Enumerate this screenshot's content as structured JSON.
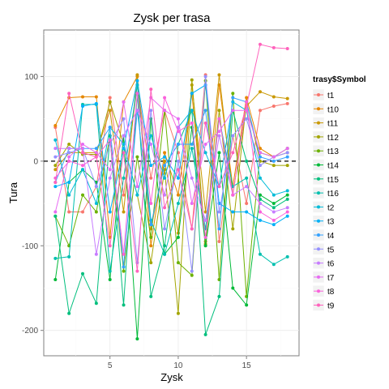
{
  "chart_data": {
    "type": "line",
    "title": "Zysk per trasa",
    "xlabel": "Zysk",
    "ylabel": "Tura",
    "xlim": [
      0.15,
      18.85
    ],
    "ylim": [
      -230,
      155
    ],
    "x_ticks": [
      5,
      10,
      15
    ],
    "y_ticks": [
      100,
      0,
      -100,
      -200
    ],
    "grid": true,
    "reference_line": {
      "y": 0,
      "style": "dashed"
    },
    "legend": {
      "title": "trasy$Symbol",
      "placement": "right"
    },
    "x": [
      1,
      2,
      3,
      4,
      5,
      6,
      7,
      8,
      9,
      10,
      11,
      12,
      13,
      14,
      15,
      16,
      17,
      18
    ],
    "series": [
      {
        "name": "t1",
        "color": "#F8766D",
        "values": [
          40,
          -60,
          -60,
          -30,
          75,
          -40,
          90,
          -20,
          60,
          10,
          -80,
          102,
          -95,
          30,
          -50,
          60,
          65,
          68
        ]
      },
      {
        "name": "t10",
        "color": "#E58700",
        "values": [
          42,
          75,
          76,
          76,
          -90,
          70,
          100,
          -100,
          10,
          -40,
          80,
          -95,
          90,
          -30,
          75,
          15,
          5,
          10
        ]
      },
      {
        "name": "t11",
        "color": "#C99800",
        "values": [
          -10,
          10,
          10,
          10,
          60,
          -60,
          102,
          -80,
          0,
          -85,
          90,
          -60,
          102,
          -40,
          65,
          82,
          76,
          74
        ]
      },
      {
        "name": "t12",
        "color": "#A3A500",
        "values": [
          -5,
          20,
          8,
          8,
          70,
          20,
          -40,
          -120,
          -10,
          -180,
          96,
          -98,
          60,
          -80,
          70,
          0,
          -5,
          -5
        ]
      },
      {
        "name": "t13",
        "color": "#6BB100",
        "values": [
          -65,
          -100,
          -40,
          -60,
          30,
          -130,
          5,
          -90,
          60,
          -120,
          -135,
          95,
          -140,
          80,
          -160,
          10,
          5,
          15
        ]
      },
      {
        "name": "t14",
        "color": "#00BA38",
        "values": [
          -140,
          -25,
          -10,
          -25,
          -140,
          30,
          -210,
          50,
          -110,
          -90,
          40,
          -100,
          10,
          -150,
          -170,
          -40,
          -50,
          -40
        ]
      },
      {
        "name": "t15",
        "color": "#00BF7D",
        "values": [
          -65,
          -180,
          -133,
          -168,
          30,
          -170,
          80,
          -160,
          -100,
          20,
          60,
          -205,
          -160,
          60,
          0,
          -45,
          -55,
          -45
        ]
      },
      {
        "name": "t16",
        "color": "#00C0AF",
        "values": [
          -115,
          -113,
          67,
          67,
          -130,
          -20,
          90,
          -70,
          -110,
          -50,
          15,
          -80,
          50,
          -30,
          -20,
          -110,
          -122,
          -113
        ]
      },
      {
        "name": "t2",
        "color": "#00BCD8",
        "values": [
          25,
          -40,
          -10,
          -50,
          40,
          20,
          -40,
          30,
          -20,
          40,
          60,
          10,
          -30,
          70,
          60,
          -20,
          -40,
          -35
        ]
      },
      {
        "name": "t3",
        "color": "#00B0F6",
        "values": [
          -30,
          -25,
          65,
          68,
          -60,
          15,
          95,
          -5,
          5,
          -20,
          80,
          90,
          -50,
          -60,
          -60,
          -70,
          -75,
          -65
        ]
      },
      {
        "name": "t4",
        "color": "#35A2FF",
        "values": [
          -25,
          15,
          15,
          15,
          40,
          -125,
          60,
          -75,
          -5,
          20,
          20,
          60,
          -80,
          75,
          70,
          5,
          0,
          5
        ]
      },
      {
        "name": "t5",
        "color": "#9590FF",
        "values": [
          5,
          10,
          15,
          -30,
          20,
          50,
          -120,
          60,
          -80,
          0,
          -130,
          100,
          -60,
          30,
          50,
          -5,
          5,
          10
        ]
      },
      {
        "name": "t6",
        "color": "#C77CFF",
        "values": [
          15,
          15,
          15,
          -110,
          -20,
          30,
          60,
          20,
          -40,
          40,
          -20,
          -70,
          30,
          -40,
          -30,
          -50,
          -60,
          -55
        ]
      },
      {
        "name": "t7",
        "color": "#E76BF3",
        "values": [
          -60,
          5,
          20,
          10,
          -10,
          70,
          -30,
          75,
          60,
          50,
          -50,
          20,
          35,
          60,
          60,
          10,
          5,
          15
        ]
      },
      {
        "name": "t8",
        "color": "#FA62DB",
        "values": [
          -20,
          0,
          -5,
          5,
          25,
          -110,
          80,
          -50,
          75,
          35,
          45,
          -90,
          50,
          -40,
          70,
          -60,
          -70,
          -60
        ]
      },
      {
        "name": "t9",
        "color": "#FF62BC",
        "values": [
          -25,
          80,
          10,
          5,
          -100,
          10,
          -130,
          85,
          -55,
          -10,
          -80,
          45,
          -30,
          10,
          65,
          138,
          134,
          133
        ]
      }
    ]
  }
}
